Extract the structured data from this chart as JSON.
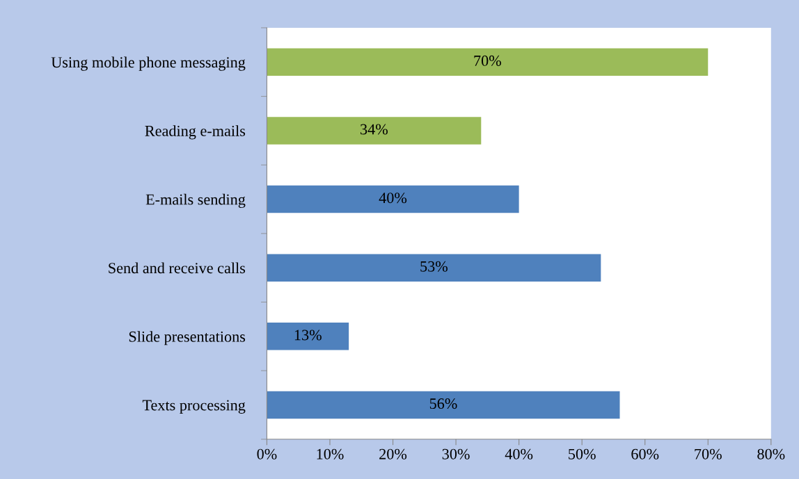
{
  "chart_data": {
    "type": "bar",
    "orientation": "horizontal",
    "categories": [
      "Using mobile phone messaging",
      "Reading e-mails",
      "E-mails sending",
      "Send and receive calls",
      "Slide presentations",
      "Texts processing"
    ],
    "values": [
      70,
      34,
      40,
      53,
      13,
      56
    ],
    "colors": [
      "#9bbb59",
      "#9bbb59",
      "#4f81bd",
      "#4f81bd",
      "#4f81bd",
      "#4f81bd"
    ],
    "value_labels": [
      "70%",
      "34%",
      "40%",
      "53%",
      "13%",
      "56%"
    ],
    "xlim": [
      0,
      80
    ],
    "xticks": [
      {
        "value": 0,
        "label": "0%"
      },
      {
        "value": 10,
        "label": "10%"
      },
      {
        "value": 20,
        "label": "20%"
      },
      {
        "value": 30,
        "label": "30%"
      },
      {
        "value": 40,
        "label": "40%"
      },
      {
        "value": 50,
        "label": "50%"
      },
      {
        "value": 60,
        "label": "60%"
      },
      {
        "value": 70,
        "label": "70%"
      },
      {
        "value": 80,
        "label": "80%"
      }
    ],
    "grid": false,
    "legend": false
  }
}
